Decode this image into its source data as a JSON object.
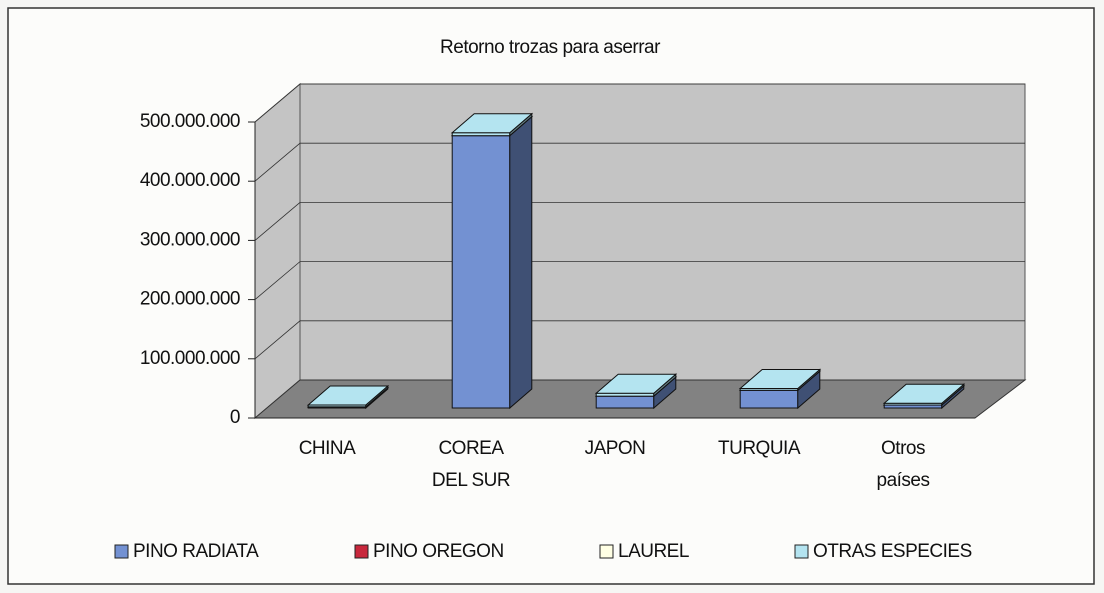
{
  "chart_data": {
    "type": "bar3d_stacked",
    "title": "Retorno trozas para aserrar",
    "categories": [
      "CHINA",
      "COREA DEL SUR",
      "JAPON",
      "TURQUIA",
      "Otros países"
    ],
    "series": [
      {
        "name": "PINO RADIATA",
        "color": "#7391d2",
        "values": [
          2000000,
          460000000,
          20000000,
          30000000,
          5000000
        ]
      },
      {
        "name": "PINO OREGON",
        "color": "#c8283c",
        "values": [
          0,
          0,
          0,
          0,
          0
        ]
      },
      {
        "name": "LAUREL",
        "color": "#ffffe4",
        "values": [
          0,
          0,
          0,
          0,
          0
        ]
      },
      {
        "name": "OTRAS ESPECIES",
        "color": "#b4e4f0",
        "values": [
          3000000,
          5000000,
          5000000,
          3000000,
          3000000
        ]
      }
    ],
    "ylim": [
      0,
      500000000
    ],
    "yticks": [
      0,
      {
        "value": 100000000,
        "label": "100.000.000"
      },
      {
        "value": 200000000,
        "label": "200.000.000"
      },
      {
        "value": 300000000,
        "label": "300.000.000"
      },
      {
        "value": 400000000,
        "label": "400.000.000"
      },
      {
        "value": 500000000,
        "label": "500.000.000"
      }
    ],
    "grid": true,
    "legend": "bottom"
  }
}
